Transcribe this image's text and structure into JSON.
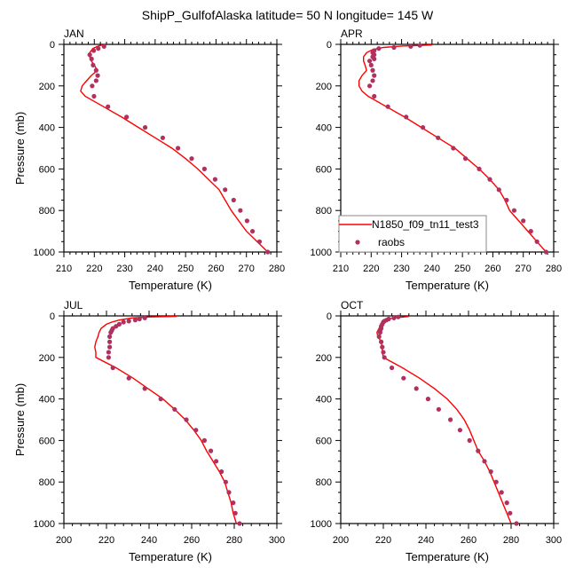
{
  "title": "ShipP_GulfofAlaska  latitude= 50 N longitude= 145 W",
  "colors": {
    "model_line": "#ff0000",
    "obs_marker": "#b03060",
    "axis": "#000000"
  },
  "legend": {
    "entries": [
      {
        "label": "N1850_f09_tn11_test3",
        "kind": "line"
      },
      {
        "label": "raobs",
        "kind": "marker"
      }
    ],
    "panel": "APR",
    "placement": "bottom-left"
  },
  "chart_data": [
    {
      "type": "line",
      "panel": "JAN",
      "title": "JAN",
      "xlabel": "Temperature (K)",
      "ylabel": "Pressure (mb)",
      "xlim": [
        210,
        280
      ],
      "ylim": [
        1000,
        0
      ],
      "xticks": [
        210,
        220,
        230,
        240,
        250,
        260,
        270,
        280
      ],
      "yticks": [
        0,
        200,
        400,
        600,
        800,
        1000
      ],
      "series": [
        {
          "name": "N1850_f09_tn11_test3",
          "kind": "line",
          "pressure": [
            3,
            10,
            20,
            40,
            60,
            80,
            100,
            125,
            150,
            175,
            200,
            225,
            250,
            300,
            350,
            400,
            450,
            500,
            550,
            600,
            650,
            700,
            750,
            800,
            850,
            900,
            950,
            1000
          ],
          "temperature": [
            222.5,
            221.0,
            219.5,
            218.5,
            218.5,
            219.0,
            220.0,
            221.0,
            219.0,
            217.5,
            216.0,
            215.5,
            217.0,
            223.0,
            229.0,
            234.5,
            240.0,
            245.5,
            250.0,
            254.0,
            257.5,
            261.0,
            263.0,
            265.0,
            267.5,
            270.0,
            273.5,
            277.0
          ]
        },
        {
          "name": "raobs",
          "kind": "marker",
          "pressure": [
            10,
            20,
            30,
            50,
            70,
            100,
            125,
            150,
            175,
            200,
            250,
            300,
            350,
            400,
            450,
            500,
            550,
            600,
            650,
            700,
            750,
            800,
            850,
            900,
            950,
            1000
          ],
          "temperature": [
            223.2,
            221.3,
            219.8,
            218.5,
            219.1,
            219.6,
            220.6,
            221.1,
            220.6,
            219.3,
            219.9,
            224.5,
            230.6,
            236.7,
            242.5,
            247.5,
            252.0,
            256.2,
            259.7,
            263.0,
            265.8,
            268.0,
            270.2,
            272.0,
            274.3,
            277.0
          ]
        }
      ]
    },
    {
      "type": "line",
      "panel": "APR",
      "title": "APR",
      "xlabel": "Temperature (K)",
      "ylabel": "",
      "xlim": [
        210,
        280
      ],
      "ylim": [
        1000,
        0
      ],
      "xticks": [
        210,
        220,
        230,
        240,
        250,
        260,
        270,
        280
      ],
      "yticks": [
        0,
        200,
        400,
        600,
        800,
        1000
      ],
      "series": [
        {
          "name": "N1850_f09_tn11_test3",
          "kind": "line",
          "pressure": [
            3,
            8,
            15,
            25,
            40,
            60,
            80,
            100,
            125,
            150,
            175,
            200,
            225,
            250,
            300,
            350,
            400,
            450,
            500,
            550,
            600,
            650,
            700,
            750,
            800,
            850,
            900,
            950,
            1000
          ],
          "temperature": [
            240.0,
            230.0,
            224.0,
            220.5,
            218.5,
            217.5,
            217.5,
            218.0,
            218.5,
            217.0,
            216.0,
            216.0,
            217.0,
            219.0,
            225.0,
            231.0,
            236.5,
            242.0,
            247.5,
            251.5,
            255.5,
            259.0,
            262.0,
            264.0,
            265.5,
            268.5,
            271.5,
            274.5,
            277.5
          ]
        },
        {
          "name": "raobs",
          "kind": "marker",
          "pressure": [
            5,
            10,
            15,
            20,
            30,
            40,
            50,
            60,
            70,
            80,
            100,
            125,
            150,
            175,
            200,
            250,
            300,
            350,
            400,
            450,
            500,
            550,
            600,
            650,
            700,
            750,
            800,
            850,
            900,
            950,
            1000
          ],
          "temperature": [
            236.0,
            233.0,
            227.5,
            222.5,
            221.0,
            220.5,
            221.0,
            220.5,
            221.0,
            219.5,
            220.0,
            220.5,
            221.0,
            220.5,
            219.5,
            221.0,
            225.5,
            231.5,
            237.0,
            242.0,
            247.0,
            251.0,
            255.5,
            259.0,
            262.0,
            264.5,
            267.0,
            270.0,
            272.5,
            274.5,
            277.5
          ]
        }
      ]
    },
    {
      "type": "line",
      "panel": "JUL",
      "title": "JUL",
      "xlabel": "Temperature (K)",
      "ylabel": "Pressure (mb)",
      "xlim": [
        200,
        300
      ],
      "ylim": [
        1000,
        0
      ],
      "xticks": [
        200,
        220,
        240,
        260,
        280,
        300
      ],
      "yticks": [
        0,
        200,
        400,
        600,
        800,
        1000
      ],
      "series": [
        {
          "name": "N1850_f09_tn11_test3",
          "kind": "line",
          "pressure": [
            2,
            5,
            10,
            20,
            30,
            40,
            60,
            80,
            100,
            125,
            150,
            175,
            200,
            250,
            300,
            350,
            400,
            450,
            500,
            550,
            600,
            650,
            700,
            750,
            800,
            850,
            900,
            950,
            1000
          ],
          "temperature": [
            253.0,
            240.0,
            232.0,
            226.0,
            222.5,
            220.0,
            217.5,
            216.5,
            216.0,
            215.0,
            214.5,
            215.0,
            215.0,
            224.5,
            232.5,
            239.5,
            246.5,
            252.0,
            257.0,
            261.0,
            264.5,
            267.0,
            270.0,
            273.0,
            275.5,
            277.0,
            278.5,
            279.5,
            281.0
          ]
        },
        {
          "name": "raobs",
          "kind": "marker",
          "pressure": [
            10,
            15,
            20,
            25,
            30,
            40,
            50,
            60,
            70,
            80,
            100,
            125,
            150,
            175,
            200,
            250,
            300,
            350,
            400,
            450,
            500,
            550,
            600,
            650,
            700,
            750,
            800,
            850,
            900,
            950,
            1000
          ],
          "temperature": [
            238.0,
            235.5,
            233.5,
            230.5,
            228.0,
            226.0,
            224.5,
            223.0,
            222.5,
            222.0,
            221.5,
            221.5,
            221.5,
            221.0,
            221.0,
            223.0,
            230.5,
            238.0,
            245.5,
            252.0,
            257.5,
            262.0,
            266.0,
            269.0,
            271.5,
            274.0,
            276.0,
            277.5,
            279.5,
            280.5,
            282.5
          ]
        }
      ]
    },
    {
      "type": "line",
      "panel": "OCT",
      "title": "OCT",
      "xlabel": "Temperature (K)",
      "ylabel": "",
      "xlim": [
        200,
        300
      ],
      "ylim": [
        1000,
        0
      ],
      "xticks": [
        200,
        220,
        240,
        260,
        280,
        300
      ],
      "yticks": [
        0,
        200,
        400,
        600,
        800,
        1000
      ],
      "series": [
        {
          "name": "N1850_f09_tn11_test3",
          "kind": "line",
          "pressure": [
            3,
            8,
            15,
            25,
            40,
            60,
            80,
            100,
            125,
            150,
            175,
            200,
            250,
            300,
            350,
            400,
            450,
            500,
            550,
            600,
            650,
            700,
            750,
            800,
            850,
            900,
            950,
            1000
          ],
          "temperature": [
            232.0,
            226.0,
            222.0,
            220.0,
            219.0,
            218.0,
            217.0,
            217.5,
            219.0,
            219.5,
            219.5,
            220.0,
            229.0,
            237.0,
            244.0,
            250.0,
            254.5,
            258.0,
            260.5,
            262.5,
            264.5,
            267.5,
            270.0,
            272.0,
            274.0,
            276.0,
            278.0,
            280.0
          ]
        },
        {
          "name": "raobs",
          "kind": "marker",
          "pressure": [
            5,
            10,
            15,
            20,
            25,
            30,
            40,
            50,
            60,
            70,
            80,
            100,
            125,
            150,
            175,
            200,
            250,
            300,
            350,
            400,
            450,
            500,
            550,
            600,
            650,
            700,
            750,
            800,
            850,
            900,
            950,
            1000
          ],
          "temperature": [
            227.0,
            225.0,
            222.5,
            221.5,
            220.5,
            220.0,
            219.5,
            219.0,
            219.0,
            218.5,
            218.5,
            218.0,
            219.0,
            219.5,
            220.0,
            220.5,
            224.0,
            229.5,
            235.5,
            241.0,
            246.0,
            251.5,
            256.0,
            260.5,
            264.5,
            267.5,
            270.5,
            273.0,
            275.5,
            278.0,
            279.5,
            282.5
          ]
        }
      ]
    }
  ]
}
